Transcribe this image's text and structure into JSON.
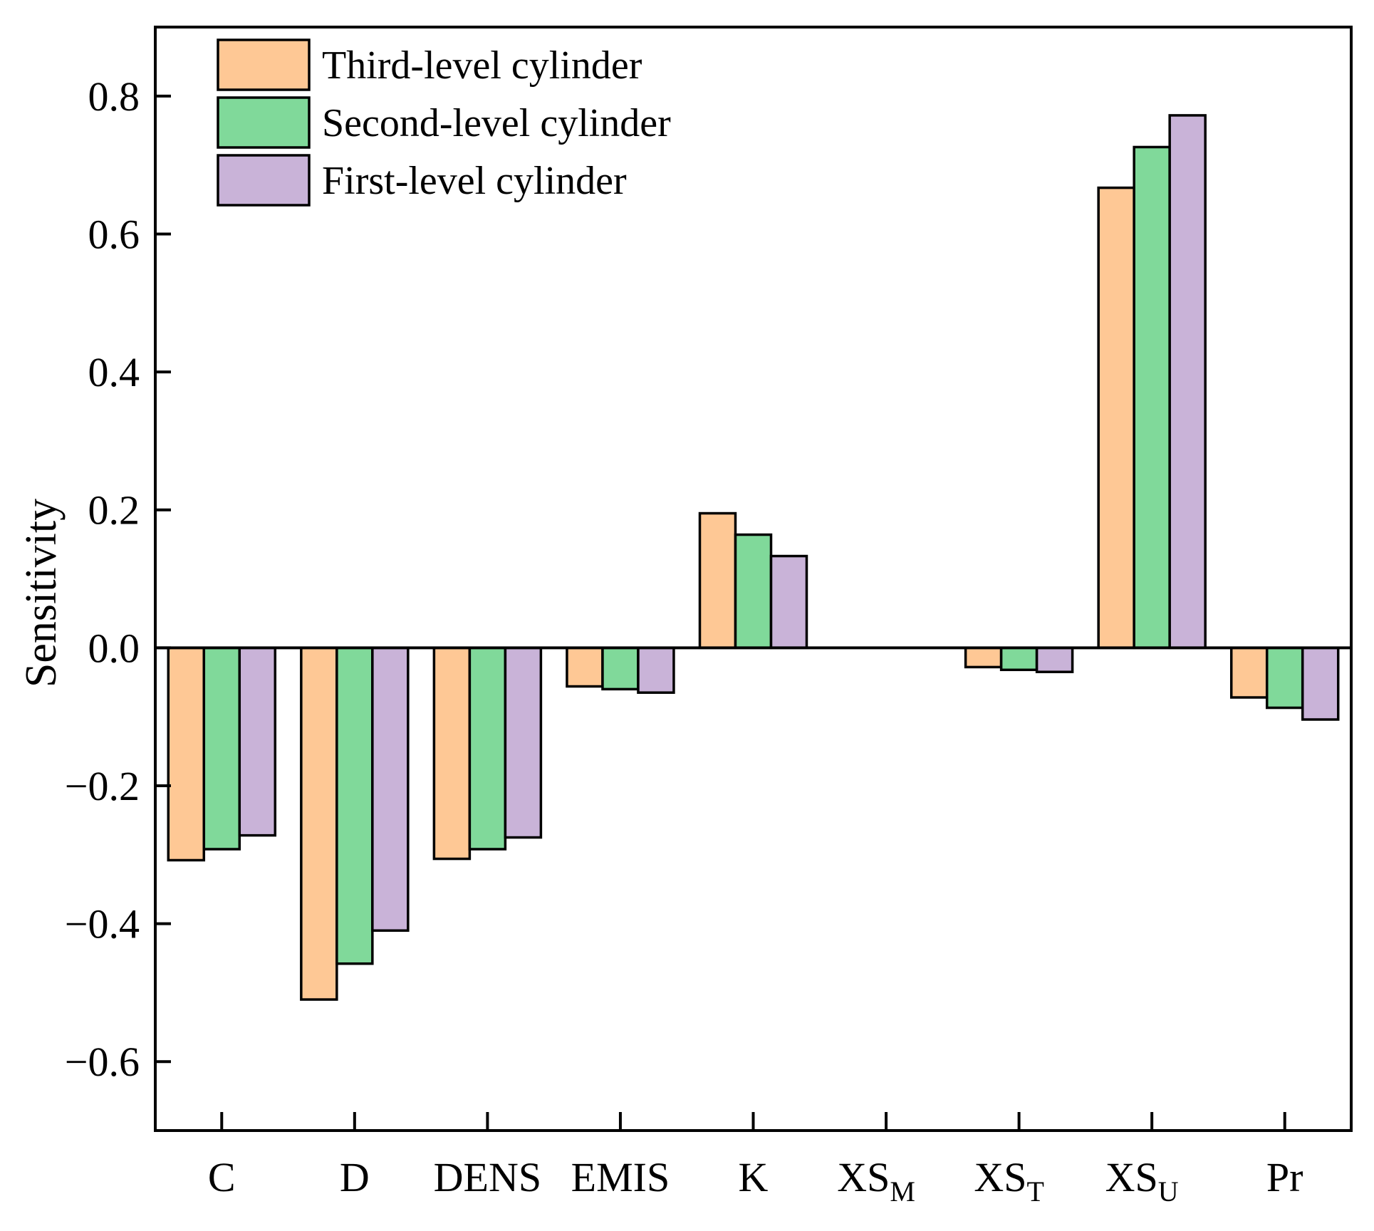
{
  "chart_data": {
    "type": "bar",
    "title": "",
    "xlabel": "",
    "ylabel": "Sensitivity",
    "ylim": [
      -0.7,
      0.9
    ],
    "yticks": [
      {
        "value": 0.8,
        "label": "0.8"
      },
      {
        "value": 0.6,
        "label": "0.6"
      },
      {
        "value": 0.4,
        "label": "0.4"
      },
      {
        "value": 0.2,
        "label": "0.2"
      },
      {
        "value": 0.0,
        "label": "0.0"
      },
      {
        "value": -0.2,
        "label": "−0.2"
      },
      {
        "value": -0.4,
        "label": "−0.4"
      },
      {
        "value": -0.6,
        "label": "−0.6"
      }
    ],
    "categories": [
      {
        "base": "C",
        "sub": ""
      },
      {
        "base": "D",
        "sub": ""
      },
      {
        "base": "DENS",
        "sub": ""
      },
      {
        "base": "EMIS",
        "sub": ""
      },
      {
        "base": "K",
        "sub": ""
      },
      {
        "base": "XS",
        "sub": "M"
      },
      {
        "base": "XS",
        "sub": "T"
      },
      {
        "base": "XS",
        "sub": "U"
      },
      {
        "base": "Pr",
        "sub": ""
      }
    ],
    "series": [
      {
        "name": "Third-level cylinder",
        "color": "#FEC895",
        "values": [
          -0.308,
          -0.51,
          -0.306,
          -0.056,
          0.195,
          0.0,
          -0.028,
          0.667,
          -0.072
        ]
      },
      {
        "name": "Second-level cylinder",
        "color": "#80D99A",
        "values": [
          -0.292,
          -0.458,
          -0.292,
          -0.06,
          0.164,
          0.0,
          -0.032,
          0.726,
          -0.087
        ]
      },
      {
        "name": "First-level cylinder",
        "color": "#C9B3D8",
        "values": [
          -0.272,
          -0.41,
          -0.275,
          -0.065,
          0.133,
          0.0,
          -0.035,
          0.772,
          -0.104
        ]
      }
    ],
    "legend_position": "top-left",
    "grid": false
  }
}
